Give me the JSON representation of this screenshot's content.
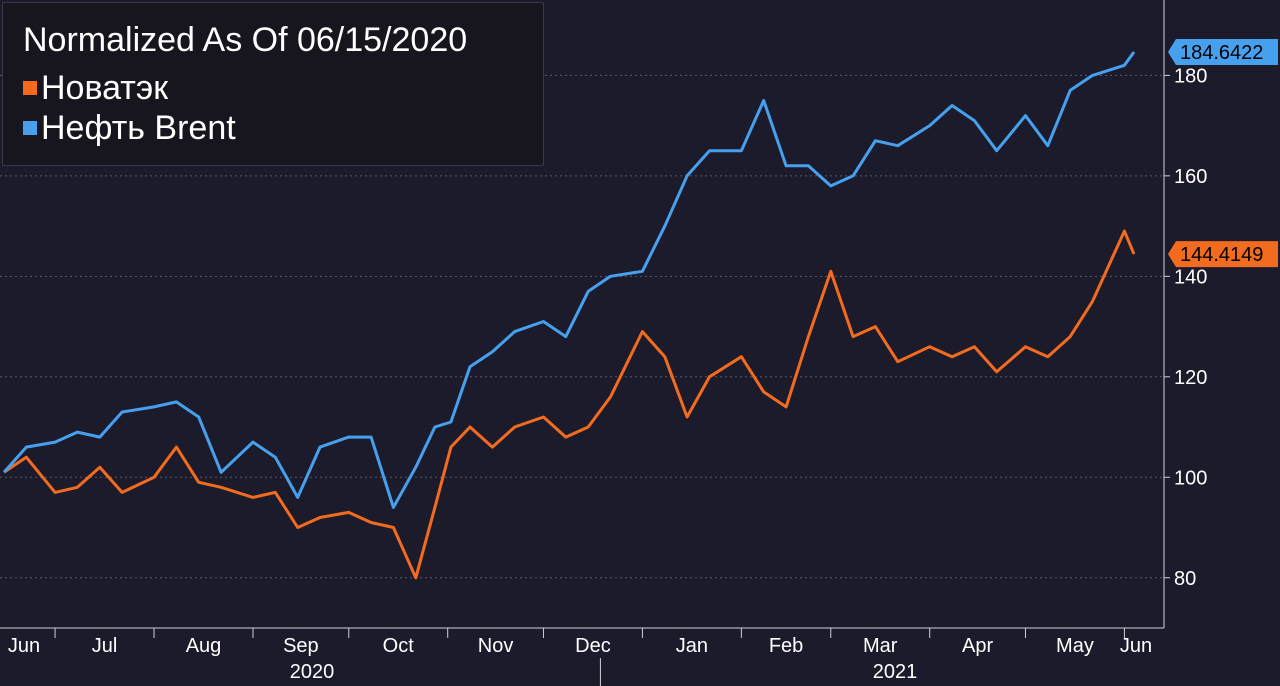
{
  "chart_data": {
    "type": "line",
    "title": "Normalized As Of 06/15/2020",
    "ylim": [
      70,
      195
    ],
    "yticks": [
      80,
      100,
      120,
      140,
      160,
      180
    ],
    "x_months": [
      "Jun",
      "Jul",
      "Aug",
      "Sep",
      "Oct",
      "Nov",
      "Dec",
      "Jan",
      "Feb",
      "Mar",
      "Apr",
      "May",
      "Jun"
    ],
    "x_years": [
      "2020",
      "2021"
    ],
    "grid": true,
    "legend_position": "top-left",
    "x": [
      "2020-06-15",
      "2020-06-22",
      "2020-07-01",
      "2020-07-08",
      "2020-07-15",
      "2020-07-22",
      "2020-08-01",
      "2020-08-08",
      "2020-08-15",
      "2020-08-22",
      "2020-09-01",
      "2020-09-08",
      "2020-09-15",
      "2020-09-22",
      "2020-10-01",
      "2020-10-08",
      "2020-10-15",
      "2020-10-22",
      "2020-10-28",
      "2020-11-02",
      "2020-11-08",
      "2020-11-15",
      "2020-11-22",
      "2020-12-01",
      "2020-12-08",
      "2020-12-15",
      "2020-12-22",
      "2021-01-01",
      "2021-01-08",
      "2021-01-15",
      "2021-01-22",
      "2021-02-01",
      "2021-02-08",
      "2021-02-15",
      "2021-02-22",
      "2021-03-01",
      "2021-03-08",
      "2021-03-15",
      "2021-03-22",
      "2021-04-01",
      "2021-04-08",
      "2021-04-15",
      "2021-04-22",
      "2021-05-01",
      "2021-05-08",
      "2021-05-15",
      "2021-05-22",
      "2021-06-01",
      "2021-06-04"
    ],
    "series": [
      {
        "name": "Новатэк",
        "color": "#f36b1e",
        "last_label": "144.4149",
        "values": [
          101,
          104,
          97,
          98,
          102,
          97,
          100,
          106,
          99,
          98,
          96,
          97,
          90,
          92,
          93,
          91,
          90,
          80,
          94,
          106,
          110,
          106,
          110,
          112,
          108,
          110,
          116,
          129,
          124,
          112,
          120,
          124,
          117,
          114,
          128,
          141,
          128,
          130,
          123,
          126,
          124,
          126,
          121,
          126,
          124,
          128,
          135,
          149,
          144.4149
        ]
      },
      {
        "name": "Нефть Brent",
        "color": "#46a0ee",
        "last_label": "184.6422",
        "values": [
          101,
          106,
          107,
          109,
          108,
          113,
          114,
          115,
          112,
          101,
          107,
          104,
          96,
          106,
          108,
          108,
          94,
          102,
          110,
          111,
          122,
          125,
          129,
          131,
          128,
          137,
          140,
          141,
          150,
          160,
          165,
          165,
          175,
          162,
          162,
          158,
          160,
          167,
          166,
          170,
          174,
          171,
          165,
          172,
          166,
          177,
          180,
          182,
          184.6422
        ]
      }
    ]
  }
}
